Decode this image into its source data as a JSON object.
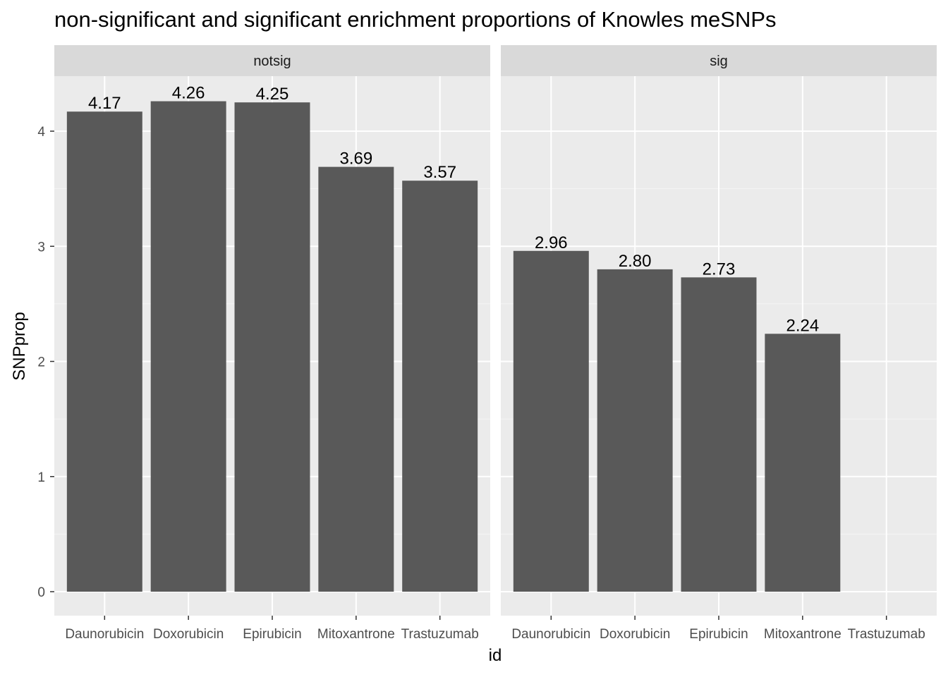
{
  "chart_data": {
    "type": "bar",
    "title": "non-significant and significant enrichment proportions of Knowles meSNPs",
    "xlabel": "id",
    "ylabel": "SNPprop",
    "ylim": [
      0,
      4.45
    ],
    "yticks": [
      0,
      1,
      2,
      3,
      4
    ],
    "categories": [
      "Daunorubicin",
      "Doxorubicin",
      "Epirubicin",
      "Mitoxantrone",
      "Trastuzumab"
    ],
    "facets": [
      {
        "name": "notsig",
        "values": [
          4.17,
          4.26,
          4.25,
          3.69,
          3.57
        ],
        "labels": [
          "4.17",
          "4.26",
          "4.25",
          "3.69",
          "3.57"
        ]
      },
      {
        "name": "sig",
        "values": [
          2.96,
          2.8,
          2.73,
          2.24,
          null
        ],
        "labels": [
          "2.96",
          "2.80",
          "2.73",
          "2.24",
          ""
        ]
      }
    ],
    "colors": {
      "bar": "#595959",
      "panel_bg": "#ebebeb",
      "strip_bg": "#d9d9d9",
      "grid_major": "#ffffff",
      "grid_minor": "#f5f5f5",
      "tick": "#333333"
    }
  }
}
